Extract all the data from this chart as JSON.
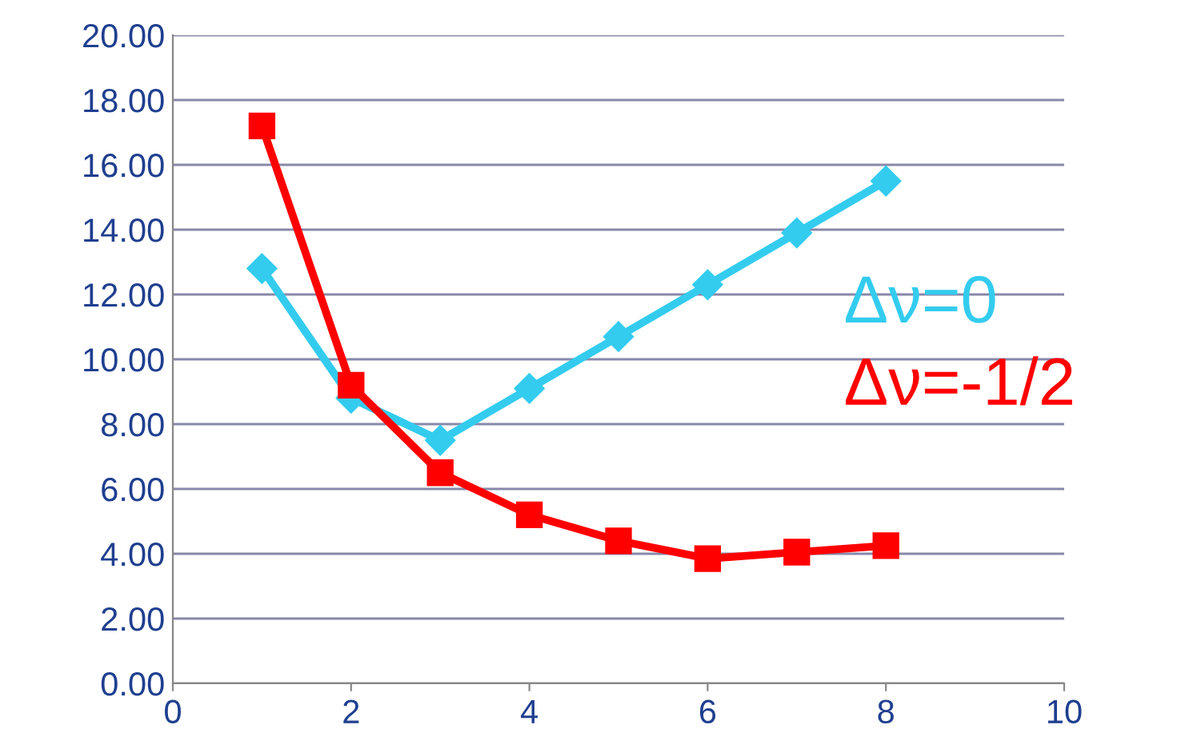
{
  "chart_data": {
    "type": "line",
    "x": [
      1,
      2,
      3,
      4,
      5,
      6,
      7,
      8
    ],
    "series": [
      {
        "name": "Δν=0",
        "color": "#33ccee",
        "marker": "diamond",
        "values": [
          12.8,
          8.8,
          7.5,
          9.1,
          10.7,
          12.3,
          13.9,
          15.5
        ]
      },
      {
        "name": "Δν=-1/2",
        "color": "#ff0000",
        "marker": "square",
        "values": [
          17.2,
          9.2,
          6.5,
          5.2,
          4.4,
          3.85,
          4.05,
          4.25
        ]
      }
    ],
    "xlim": [
      0,
      10
    ],
    "xticks": [
      0,
      2,
      4,
      6,
      8,
      10
    ],
    "ylim": [
      0,
      20
    ],
    "yticks": [
      {
        "value": 0,
        "label": "0.00"
      },
      {
        "value": 2,
        "label": "2.00"
      },
      {
        "value": 4,
        "label": "4.00"
      },
      {
        "value": 6,
        "label": "6.00"
      },
      {
        "value": 8,
        "label": "8.00"
      },
      {
        "value": 10,
        "label": "10.00"
      },
      {
        "value": 12,
        "label": "12.00"
      },
      {
        "value": 14,
        "label": "14.00"
      },
      {
        "value": 16,
        "label": "16.00"
      },
      {
        "value": 18,
        "label": "18.00"
      },
      {
        "value": 20,
        "label": "20.00"
      }
    ],
    "grid": "y",
    "legend": "right",
    "line_style": "solid"
  }
}
